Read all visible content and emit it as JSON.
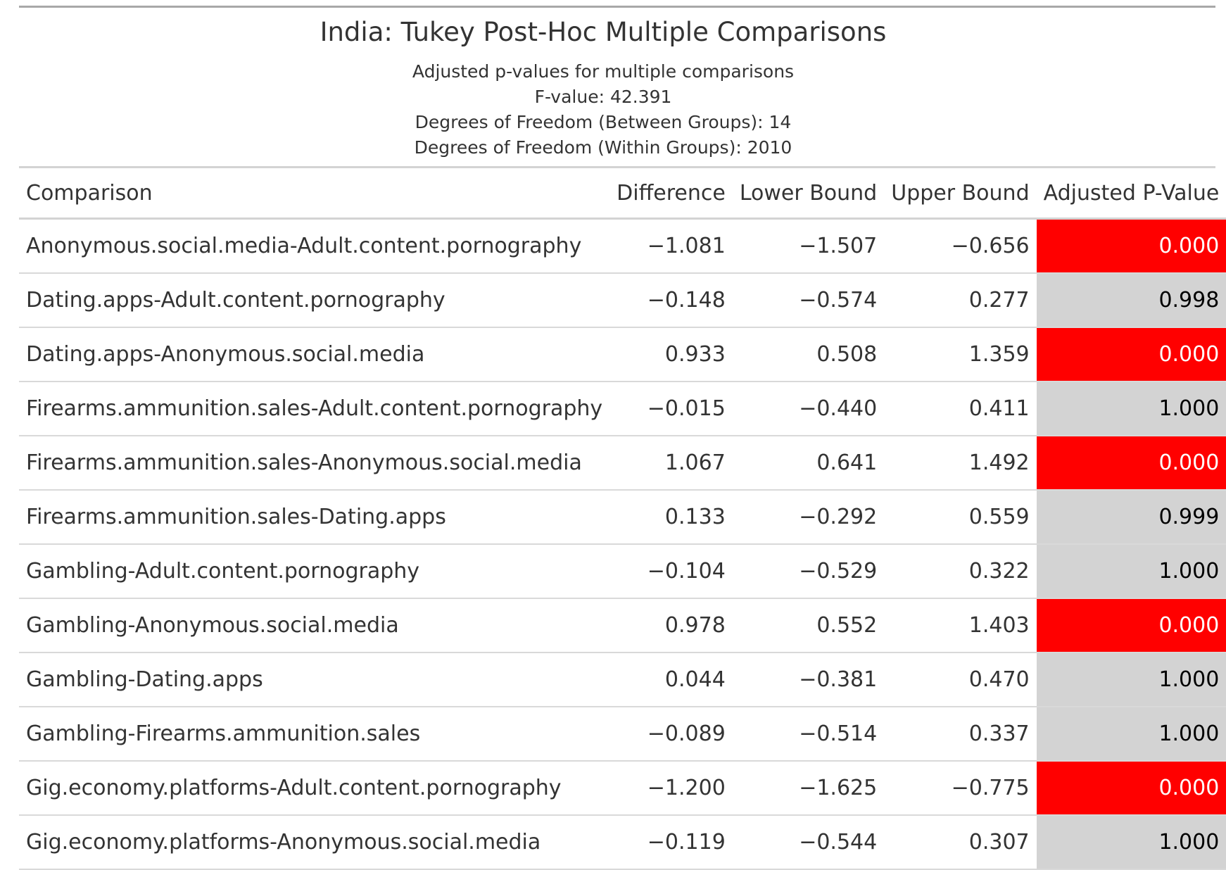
{
  "title": "India: Tukey Post-Hoc Multiple Comparisons",
  "subtitle_lines": [
    "Adjusted p-values for multiple comparisons",
    "F-value: 42.391",
    "Degrees of Freedom (Between Groups): 14",
    "Degrees of Freedom (Within Groups): 2010"
  ],
  "columns": {
    "comparison": "Comparison",
    "difference": "Difference",
    "lower": "Lower Bound",
    "upper": "Upper Bound",
    "pvalue": "Adjusted P-Value"
  },
  "colors": {
    "significant_fill": "#ff0000",
    "nonsignificant_fill": "#d3d3d3"
  },
  "rows": [
    {
      "comparison": "Anonymous.social.media-Adult.content.pornography",
      "difference": "−1.081",
      "lower": "−1.507",
      "upper": "−0.656",
      "pvalue": "0.000",
      "significant": true
    },
    {
      "comparison": "Dating.apps-Adult.content.pornography",
      "difference": "−0.148",
      "lower": "−0.574",
      "upper": "0.277",
      "pvalue": "0.998",
      "significant": false
    },
    {
      "comparison": "Dating.apps-Anonymous.social.media",
      "difference": "0.933",
      "lower": "0.508",
      "upper": "1.359",
      "pvalue": "0.000",
      "significant": true
    },
    {
      "comparison": "Firearms.ammunition.sales-Adult.content.pornography",
      "difference": "−0.015",
      "lower": "−0.440",
      "upper": "0.411",
      "pvalue": "1.000",
      "significant": false
    },
    {
      "comparison": "Firearms.ammunition.sales-Anonymous.social.media",
      "difference": "1.067",
      "lower": "0.641",
      "upper": "1.492",
      "pvalue": "0.000",
      "significant": true
    },
    {
      "comparison": "Firearms.ammunition.sales-Dating.apps",
      "difference": "0.133",
      "lower": "−0.292",
      "upper": "0.559",
      "pvalue": "0.999",
      "significant": false
    },
    {
      "comparison": "Gambling-Adult.content.pornography",
      "difference": "−0.104",
      "lower": "−0.529",
      "upper": "0.322",
      "pvalue": "1.000",
      "significant": false
    },
    {
      "comparison": "Gambling-Anonymous.social.media",
      "difference": "0.978",
      "lower": "0.552",
      "upper": "1.403",
      "pvalue": "0.000",
      "significant": true
    },
    {
      "comparison": "Gambling-Dating.apps",
      "difference": "0.044",
      "lower": "−0.381",
      "upper": "0.470",
      "pvalue": "1.000",
      "significant": false
    },
    {
      "comparison": "Gambling-Firearms.ammunition.sales",
      "difference": "−0.089",
      "lower": "−0.514",
      "upper": "0.337",
      "pvalue": "1.000",
      "significant": false
    },
    {
      "comparison": "Gig.economy.platforms-Adult.content.pornography",
      "difference": "−1.200",
      "lower": "−1.625",
      "upper": "−0.775",
      "pvalue": "0.000",
      "significant": true
    },
    {
      "comparison": "Gig.economy.platforms-Anonymous.social.media",
      "difference": "−0.119",
      "lower": "−0.544",
      "upper": "0.307",
      "pvalue": "1.000",
      "significant": false
    }
  ]
}
